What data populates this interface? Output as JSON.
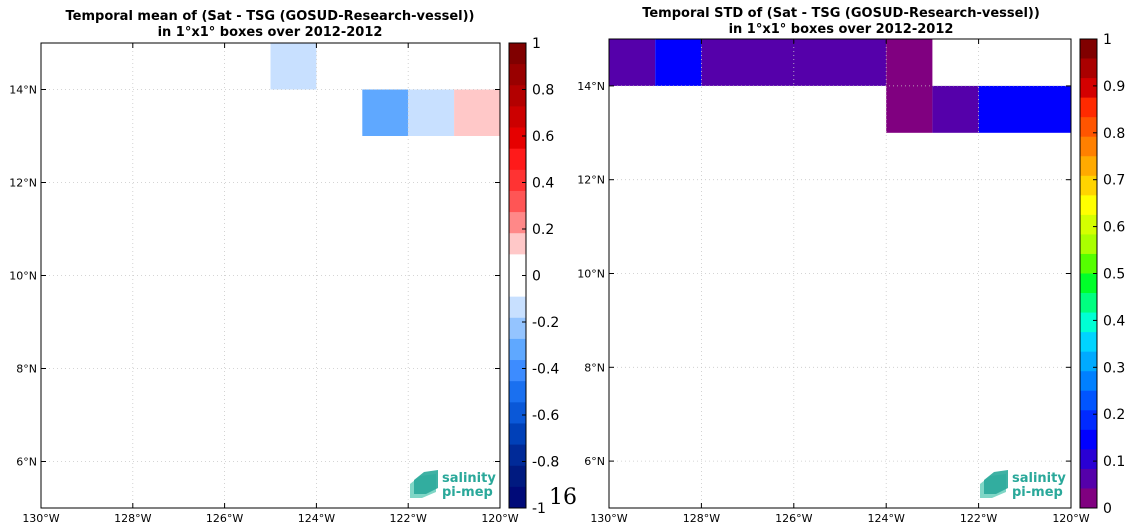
{
  "page_number": "16",
  "logo": {
    "line1": "salinity",
    "line2": "pi-mep",
    "color": "#2aa89a"
  },
  "chart_data": [
    {
      "type": "heatmap",
      "title": "Temporal mean of (Sat - TSG (GOSUD-Research-vessel))",
      "subtitle": "in 1°x1° boxes over 2012-2012",
      "xlim": [
        -130,
        -120
      ],
      "ylim": [
        5,
        15
      ],
      "x_ticks": [
        -130,
        -128,
        -126,
        -124,
        -122,
        -120
      ],
      "x_tick_labels": [
        "130°W",
        "128°W",
        "126°W",
        "124°W",
        "122°W",
        "120°W"
      ],
      "y_ticks": [
        6,
        8,
        10,
        12,
        14
      ],
      "y_tick_labels": [
        "6°N",
        "8°N",
        "10°N",
        "12°N",
        "14°N"
      ],
      "grid": true,
      "cells": [
        {
          "lon": [
            -125,
            -124
          ],
          "lat": [
            14,
            15
          ],
          "value": -0.15
        },
        {
          "lon": [
            -123,
            -122
          ],
          "lat": [
            13,
            14
          ],
          "value": -0.3
        },
        {
          "lon": [
            -122,
            -121
          ],
          "lat": [
            13,
            14
          ],
          "value": -0.15
        },
        {
          "lon": [
            -121,
            -120
          ],
          "lat": [
            13,
            14
          ],
          "value": 0.15
        }
      ],
      "colorbar": {
        "range": [
          -1,
          1
        ],
        "ticks": [
          1,
          0.8,
          0.6,
          0.4,
          0.2,
          0,
          -0.2,
          -0.4,
          -0.6,
          -0.8,
          -1
        ],
        "tick_labels": [
          "1",
          "0.8",
          "0.6",
          "0.4",
          "0.2",
          "0",
          "-0.2",
          "-0.4",
          "-0.6",
          "-0.8",
          "-1"
        ],
        "colors_top_to_bottom": [
          "#800000",
          "#990000",
          "#b30000",
          "#cc0000",
          "#e60000",
          "#ff1a1a",
          "#ff3333",
          "#ff5555",
          "#ff8888",
          "#ffc8c8",
          "#ffffff",
          "#ffffff",
          "#c8e0ff",
          "#94c4ff",
          "#5fa8ff",
          "#3d8cff",
          "#1a70f0",
          "#0a58d8",
          "#0040b8",
          "#002a98",
          "#001a80",
          "#000a78"
        ]
      }
    },
    {
      "type": "heatmap",
      "title": "Temporal STD of (Sat - TSG (GOSUD-Research-vessel))",
      "subtitle": "in 1°x1° boxes over 2012-2012",
      "xlim": [
        -130,
        -120
      ],
      "ylim": [
        5,
        15
      ],
      "x_ticks": [
        -130,
        -128,
        -126,
        -124,
        -122,
        -120
      ],
      "x_tick_labels": [
        "130°W",
        "128°W",
        "126°W",
        "124°W",
        "122°W",
        "120°W"
      ],
      "y_ticks": [
        6,
        8,
        10,
        12,
        14
      ],
      "y_tick_labels": [
        "6°N",
        "8°N",
        "10°N",
        "12°N",
        "14°N"
      ],
      "grid": true,
      "cells": [
        {
          "lon": [
            -130,
            -129
          ],
          "lat": [
            14,
            15
          ],
          "value": 0.07
        },
        {
          "lon": [
            -129,
            -128
          ],
          "lat": [
            14,
            15
          ],
          "value": 0.13
        },
        {
          "lon": [
            -128,
            -124
          ],
          "lat": [
            14,
            15
          ],
          "value": 0.07
        },
        {
          "lon": [
            -124,
            -123
          ],
          "lat": [
            13,
            15
          ],
          "value": 0.02
        },
        {
          "lon": [
            -123,
            -122
          ],
          "lat": [
            13,
            14
          ],
          "value": 0.07
        },
        {
          "lon": [
            -122,
            -120
          ],
          "lat": [
            13,
            14
          ],
          "value": 0.13
        }
      ],
      "colorbar": {
        "range": [
          0,
          1
        ],
        "ticks": [
          1,
          0.9,
          0.8,
          0.7,
          0.6,
          0.5,
          0.4,
          0.3,
          0.2,
          0.1,
          0
        ],
        "tick_labels": [
          "1",
          "0.9",
          "0.8",
          "0.7",
          "0.6",
          "0.5",
          "0.4",
          "0.3",
          "0.2",
          "0.1",
          "0"
        ],
        "colors_top_to_bottom": [
          "#800000",
          "#aa0000",
          "#d40000",
          "#ff2a00",
          "#ff5500",
          "#ff8000",
          "#ffaa00",
          "#ffd400",
          "#ffff00",
          "#d4ff00",
          "#aaff00",
          "#55ff00",
          "#00ff2a",
          "#00ff80",
          "#00ffd4",
          "#00d4ff",
          "#00aaff",
          "#0080ff",
          "#0055ff",
          "#002aff",
          "#0000ff",
          "#2a00d4",
          "#5500aa",
          "#800080"
        ]
      }
    }
  ]
}
